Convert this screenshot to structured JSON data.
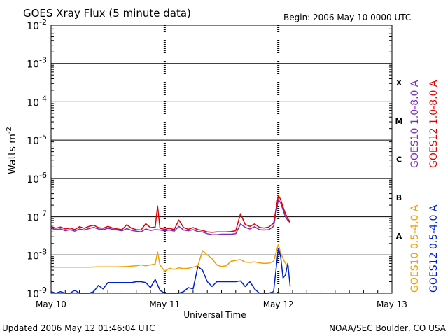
{
  "header": {
    "title": "GOES Xray Flux (5 minute data)",
    "begin": "Begin:  2006 May 10 0000 UTC"
  },
  "footer": {
    "updated": "Updated 2006 May 12 01:46:04 UTC",
    "credit": "NOAA/SEC Boulder, CO USA"
  },
  "colors": {
    "goes10_long": "#7b2cbf",
    "goes12_long": "#e00000",
    "goes10_short": "#f0a000",
    "goes12_short": "#0020d0",
    "axis": "#000000"
  },
  "chart_data": {
    "type": "line",
    "title": "GOES Xray Flux (5 minute data)",
    "xlabel": "Universal Time",
    "ylabel": "Watts m",
    "ylabel_superscript": "-2",
    "yscale": "log",
    "ylim": [
      1e-09,
      0.01
    ],
    "y_ticks": [
      {
        "base": "10",
        "exp": "-9"
      },
      {
        "base": "10",
        "exp": "-8"
      },
      {
        "base": "10",
        "exp": "-7"
      },
      {
        "base": "10",
        "exp": "-6"
      },
      {
        "base": "10",
        "exp": "-5"
      },
      {
        "base": "10",
        "exp": "-4"
      },
      {
        "base": "10",
        "exp": "-3"
      },
      {
        "base": "10",
        "exp": "-2"
      }
    ],
    "x_range_hours": [
      0,
      72
    ],
    "x_ticks": [
      {
        "label": "May 10",
        "hour": 0
      },
      {
        "label": "May 11",
        "hour": 24
      },
      {
        "label": "May 12",
        "hour": 48
      },
      {
        "label": "May 13",
        "hour": 72
      }
    ],
    "flare_classes": [
      {
        "label": "A",
        "low": 1e-08,
        "high": 1e-07
      },
      {
        "label": "B",
        "low": 1e-07,
        "high": 1e-06
      },
      {
        "label": "C",
        "low": 1e-06,
        "high": 1e-05
      },
      {
        "label": "M",
        "low": 1e-05,
        "high": 0.0001
      },
      {
        "label": "X",
        "low": 0.0001,
        "high": 0.001
      }
    ],
    "grid": "horizontal at each decade from 1e-8 to 1e-3",
    "legend_placement": "right, vertical",
    "series": [
      {
        "name": "GOES10 1.0-8.0 A",
        "key": "goes10_long",
        "points": [
          [
            0,
            5e-08
          ],
          [
            1,
            4.6e-08
          ],
          [
            2,
            4.8e-08
          ],
          [
            3,
            4.3e-08
          ],
          [
            4,
            4.6e-08
          ],
          [
            5,
            4.2e-08
          ],
          [
            6,
            4.8e-08
          ],
          [
            7,
            4.5e-08
          ],
          [
            8,
            4.9e-08
          ],
          [
            9,
            5.3e-08
          ],
          [
            10,
            4.8e-08
          ],
          [
            11,
            4.6e-08
          ],
          [
            12,
            5e-08
          ],
          [
            13,
            4.7e-08
          ],
          [
            14,
            4.5e-08
          ],
          [
            15,
            4.3e-08
          ],
          [
            16,
            4.9e-08
          ],
          [
            17,
            4.4e-08
          ],
          [
            18,
            4.2e-08
          ],
          [
            19,
            4e-08
          ],
          [
            20,
            4.8e-08
          ],
          [
            21,
            4.4e-08
          ],
          [
            22,
            4.6e-08
          ],
          [
            23,
            4.5e-08
          ],
          [
            24,
            4.3e-08
          ],
          [
            25,
            4.5e-08
          ],
          [
            26,
            4.2e-08
          ],
          [
            27,
            5.6e-08
          ],
          [
            28,
            4.5e-08
          ],
          [
            29,
            4.3e-08
          ],
          [
            30,
            4.6e-08
          ],
          [
            31,
            4.1e-08
          ],
          [
            32,
            4e-08
          ],
          [
            33,
            3.6e-08
          ],
          [
            34,
            3.4e-08
          ],
          [
            35,
            3.4e-08
          ],
          [
            36,
            3.5e-08
          ],
          [
            37,
            3.5e-08
          ],
          [
            38,
            3.5e-08
          ],
          [
            39,
            3.6e-08
          ],
          [
            40,
            6.5e-08
          ],
          [
            41,
            5.3e-08
          ],
          [
            42,
            4.8e-08
          ],
          [
            43,
            5.5e-08
          ],
          [
            44,
            4.6e-08
          ],
          [
            45,
            4.5e-08
          ],
          [
            46,
            4.6e-08
          ],
          [
            47,
            5.6e-08
          ],
          [
            48,
            2.8e-07
          ],
          [
            48.5,
            2.3e-07
          ],
          [
            49,
            1.5e-07
          ],
          [
            49.5,
            1e-07
          ],
          [
            50,
            8e-08
          ],
          [
            50.5,
            7e-08
          ]
        ]
      },
      {
        "name": "GOES12 1.0-8.0 A",
        "key": "goes12_long",
        "points": [
          [
            0,
            5.6e-08
          ],
          [
            1,
            5e-08
          ],
          [
            2,
            5.4e-08
          ],
          [
            3,
            4.8e-08
          ],
          [
            4,
            5.1e-08
          ],
          [
            5,
            4.6e-08
          ],
          [
            6,
            5.5e-08
          ],
          [
            7,
            5e-08
          ],
          [
            8,
            5.6e-08
          ],
          [
            9,
            6e-08
          ],
          [
            10,
            5.2e-08
          ],
          [
            11,
            5e-08
          ],
          [
            12,
            5.6e-08
          ],
          [
            13,
            5.1e-08
          ],
          [
            14,
            4.8e-08
          ],
          [
            15,
            4.6e-08
          ],
          [
            16,
            6.2e-08
          ],
          [
            17,
            5e-08
          ],
          [
            18,
            4.6e-08
          ],
          [
            19,
            4.5e-08
          ],
          [
            20,
            6.6e-08
          ],
          [
            21,
            5.2e-08
          ],
          [
            22,
            5.4e-08
          ],
          [
            22.5,
            1.9e-07
          ],
          [
            23,
            5e-08
          ],
          [
            24,
            4.7e-08
          ],
          [
            25,
            5e-08
          ],
          [
            26,
            4.6e-08
          ],
          [
            27,
            8.2e-08
          ],
          [
            28,
            5.2e-08
          ],
          [
            29,
            4.7e-08
          ],
          [
            30,
            5.2e-08
          ],
          [
            31,
            4.6e-08
          ],
          [
            32,
            4.4e-08
          ],
          [
            33,
            4e-08
          ],
          [
            34,
            3.9e-08
          ],
          [
            35,
            4e-08
          ],
          [
            36,
            4e-08
          ],
          [
            37,
            4e-08
          ],
          [
            38,
            4.1e-08
          ],
          [
            39,
            4.3e-08
          ],
          [
            40,
            1.2e-07
          ],
          [
            41,
            6.3e-08
          ],
          [
            42,
            5.6e-08
          ],
          [
            43,
            6.5e-08
          ],
          [
            44,
            5.3e-08
          ],
          [
            45,
            5.1e-08
          ],
          [
            46,
            5.4e-08
          ],
          [
            47,
            6.8e-08
          ],
          [
            48,
            3.6e-07
          ],
          [
            48.5,
            2.8e-07
          ],
          [
            49,
            1.8e-07
          ],
          [
            49.5,
            1.2e-07
          ],
          [
            50,
            9e-08
          ],
          [
            50.5,
            7.3e-08
          ]
        ]
      },
      {
        "name": "GOES10 0.5-4.0 A",
        "key": "goes10_short",
        "points": [
          [
            0,
            4.8e-09
          ],
          [
            2,
            4.8e-09
          ],
          [
            4,
            4.8e-09
          ],
          [
            6,
            4.8e-09
          ],
          [
            8,
            4.8e-09
          ],
          [
            10,
            4.9e-09
          ],
          [
            12,
            4.9e-09
          ],
          [
            14,
            4.9e-09
          ],
          [
            16,
            5e-09
          ],
          [
            18,
            5.2e-09
          ],
          [
            19,
            5.5e-09
          ],
          [
            20,
            5.2e-09
          ],
          [
            21,
            5.5e-09
          ],
          [
            22,
            5.8e-09
          ],
          [
            22.5,
            1.2e-08
          ],
          [
            23,
            5.5e-09
          ],
          [
            24,
            3.8e-09
          ],
          [
            25,
            4.5e-09
          ],
          [
            26,
            4.2e-09
          ],
          [
            27,
            4.6e-09
          ],
          [
            28,
            4.4e-09
          ],
          [
            29,
            4.5e-09
          ],
          [
            30,
            4.8e-09
          ],
          [
            31,
            5.2e-09
          ],
          [
            32,
            1.3e-08
          ],
          [
            33,
            1e-08
          ],
          [
            34,
            8e-09
          ],
          [
            35,
            5.5e-09
          ],
          [
            36,
            5e-09
          ],
          [
            37,
            5.2e-09
          ],
          [
            38,
            6.8e-09
          ],
          [
            39,
            7.2e-09
          ],
          [
            40,
            7.6e-09
          ],
          [
            41,
            6.5e-09
          ],
          [
            42,
            6.4e-09
          ],
          [
            43,
            6.6e-09
          ],
          [
            44,
            6.2e-09
          ],
          [
            45,
            6e-09
          ],
          [
            46,
            6.1e-09
          ],
          [
            47,
            6.8e-09
          ],
          [
            48,
            1.9e-08
          ],
          [
            48.5,
            1.1e-08
          ],
          [
            49,
            8e-09
          ],
          [
            49.5,
            6e-09
          ],
          [
            50,
            5e-09
          ],
          [
            50.5,
            4.8e-09
          ]
        ]
      },
      {
        "name": "GOES12 0.5-4.0 A",
        "key": "goes12_short",
        "points": [
          [
            0,
            1.1e-09
          ],
          [
            1,
            1e-09
          ],
          [
            2,
            1.1e-09
          ],
          [
            3,
            1e-09
          ],
          [
            4,
            1e-09
          ],
          [
            5,
            1.2e-09
          ],
          [
            6,
            1e-09
          ],
          [
            7,
            1e-09
          ],
          [
            8,
            1e-09
          ],
          [
            9,
            1.1e-09
          ],
          [
            10,
            1.6e-09
          ],
          [
            11,
            1.3e-09
          ],
          [
            12,
            1.9e-09
          ],
          [
            13,
            1.9e-09
          ],
          [
            14,
            1.9e-09
          ],
          [
            15,
            1.9e-09
          ],
          [
            16,
            1.9e-09
          ],
          [
            17,
            1.9e-09
          ],
          [
            18,
            2e-09
          ],
          [
            19,
            2e-09
          ],
          [
            20,
            1.9e-09
          ],
          [
            21,
            1.4e-09
          ],
          [
            22,
            2.3e-09
          ],
          [
            23,
            1.2e-09
          ],
          [
            24,
            1e-09
          ],
          [
            25,
            1e-09
          ],
          [
            26,
            1e-09
          ],
          [
            27,
            1e-09
          ],
          [
            28,
            1.1e-09
          ],
          [
            29,
            1.4e-09
          ],
          [
            30,
            1.3e-09
          ],
          [
            31,
            5e-09
          ],
          [
            32,
            4e-09
          ],
          [
            33,
            2e-09
          ],
          [
            34,
            1.5e-09
          ],
          [
            35,
            2e-09
          ],
          [
            36,
            2e-09
          ],
          [
            37,
            2e-09
          ],
          [
            38,
            2e-09
          ],
          [
            39,
            2e-09
          ],
          [
            40,
            2.1e-09
          ],
          [
            41,
            1.5e-09
          ],
          [
            42,
            2e-09
          ],
          [
            43,
            1.3e-09
          ],
          [
            44,
            1e-09
          ],
          [
            45,
            1e-09
          ],
          [
            46,
            1e-09
          ],
          [
            47,
            1.1e-09
          ],
          [
            48,
            1.5e-08
          ],
          [
            48.5,
            9e-09
          ],
          [
            49,
            2.5e-09
          ],
          [
            49.5,
            3e-09
          ],
          [
            50,
            6e-09
          ],
          [
            50.5,
            1.5e-09
          ]
        ]
      }
    ]
  }
}
